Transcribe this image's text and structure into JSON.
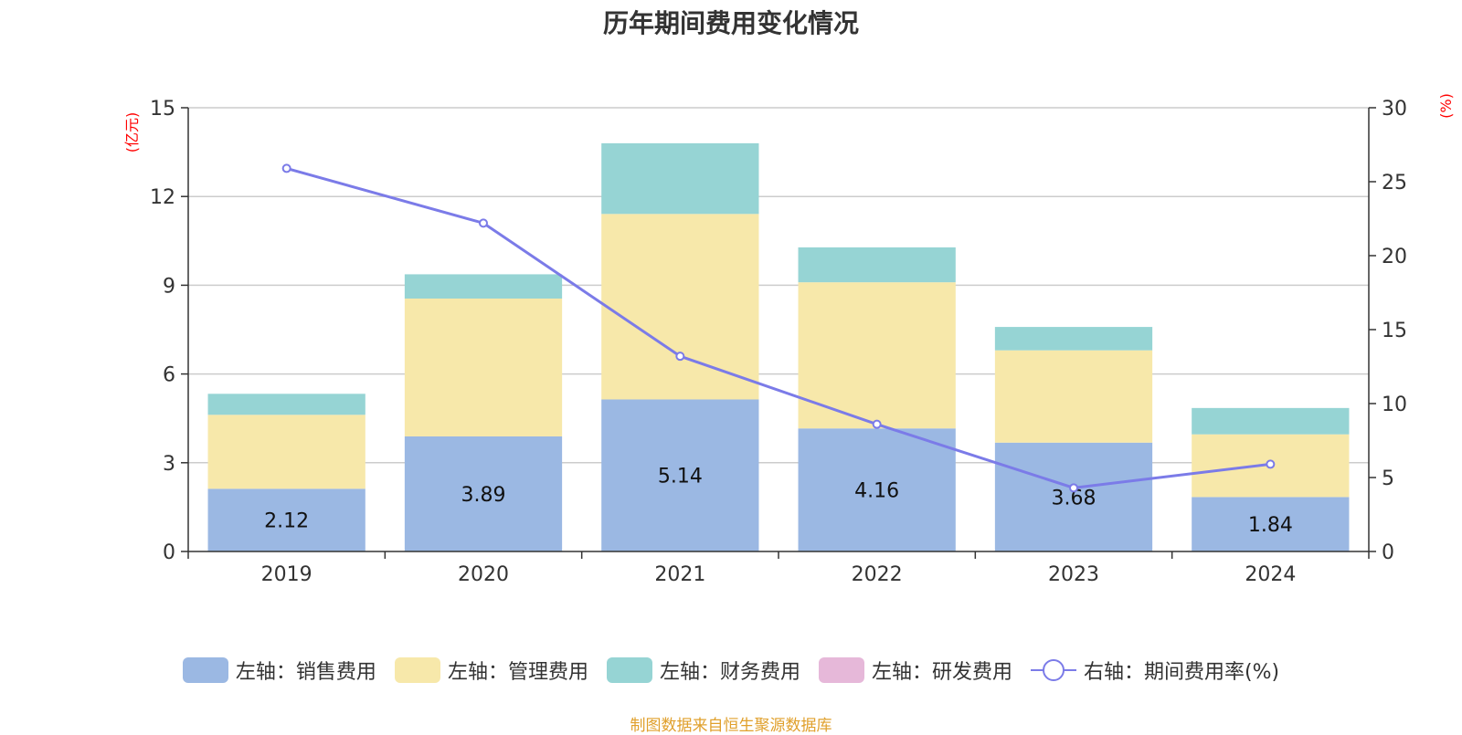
{
  "title": "历年期间费用变化情况",
  "left_axis_unit": "(亿元)",
  "right_axis_unit": "(%)",
  "source": "制图数据来自恒生聚源数据库",
  "colors": {
    "sales": "#9bb8e3",
    "admin": "#f7e8aa",
    "finance": "#96d4d4",
    "rd": "#e6b8d9",
    "rate": "#7b7be8",
    "grid": "#cccccc",
    "axis": "#333333"
  },
  "legend": [
    {
      "label": "左轴：销售费用",
      "type": "swatch",
      "color": "#9bb8e3"
    },
    {
      "label": "左轴：管理费用",
      "type": "swatch",
      "color": "#f7e8aa"
    },
    {
      "label": "左轴：财务费用",
      "type": "swatch",
      "color": "#96d4d4"
    },
    {
      "label": "左轴：研发费用",
      "type": "swatch",
      "color": "#e6b8d9"
    },
    {
      "label": "右轴：期间费用率(%)",
      "type": "line",
      "color": "#7b7be8"
    }
  ],
  "chart_data": {
    "type": "bar",
    "stacked": true,
    "title": "历年期间费用变化情况",
    "categories": [
      "2019",
      "2020",
      "2021",
      "2022",
      "2023",
      "2024"
    ],
    "y_left": {
      "label": "(亿元)",
      "ylim": [
        0,
        15
      ],
      "ticks": [
        0,
        3,
        6,
        9,
        12,
        15
      ]
    },
    "y_right": {
      "label": "(%)",
      "ylim": [
        0,
        30
      ],
      "ticks": [
        0,
        5,
        10,
        15,
        20,
        25,
        30
      ]
    },
    "series": [
      {
        "name": "左轴：销售费用",
        "axis": "left",
        "values": [
          2.12,
          3.89,
          5.14,
          4.16,
          3.68,
          1.84
        ],
        "color": "#9bb8e3",
        "show_labels": true
      },
      {
        "name": "左轴：管理费用",
        "axis": "left",
        "values": [
          2.5,
          4.66,
          6.27,
          4.94,
          3.12,
          2.12
        ],
        "color": "#f7e8aa"
      },
      {
        "name": "左轴：财务费用",
        "axis": "left",
        "values": [
          0.71,
          0.82,
          2.39,
          1.18,
          0.79,
          0.89
        ],
        "color": "#96d4d4"
      },
      {
        "name": "左轴：研发费用",
        "axis": "left",
        "values": [
          0,
          0,
          0,
          0,
          0,
          0
        ],
        "color": "#e6b8d9"
      },
      {
        "name": "右轴：期间费用率(%)",
        "axis": "right",
        "type": "line",
        "values": [
          25.9,
          22.2,
          13.2,
          8.6,
          4.3,
          5.9
        ],
        "color": "#7b7be8"
      }
    ],
    "grid": true,
    "legend_position": "bottom"
  }
}
